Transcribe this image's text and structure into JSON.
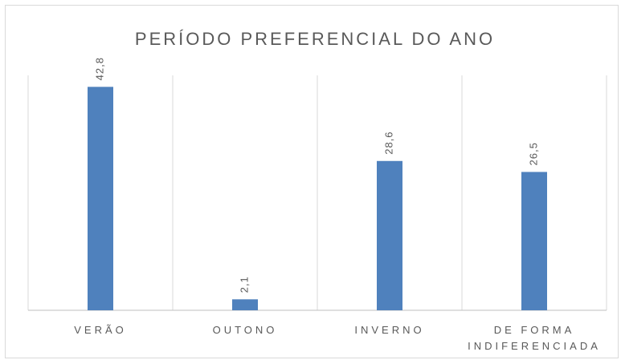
{
  "chart_data": {
    "type": "bar",
    "title": "PERÍODO PREFERENCIAL DO ANO",
    "categories": [
      "VERÃO",
      "OUTONO",
      "INVERNO",
      "DE FORMA INDIFERENCIADA"
    ],
    "values": [
      42.8,
      2.1,
      28.6,
      26.5
    ],
    "value_labels": [
      "42,8",
      "2,1",
      "28,6",
      "26,5"
    ],
    "color": "#4f81bd",
    "ylim": [
      0,
      45
    ]
  }
}
